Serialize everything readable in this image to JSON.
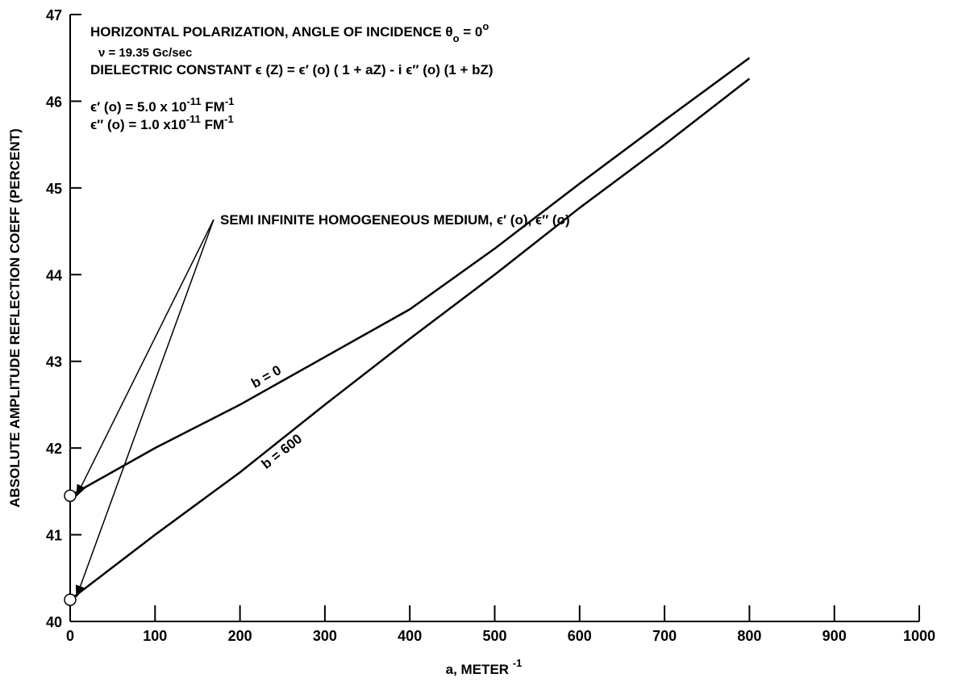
{
  "chart_data": {
    "type": "line",
    "xlabel": [
      "a, METER ",
      "-1"
    ],
    "ylabel": "ABSOLUTE AMPLITUDE REFLECTION COEFF  (PERCENT)",
    "annotations": [
      [
        "HORIZONTAL POLARIZATION, ANGLE OF INCIDENCE  θ",
        "o",
        " = 0",
        "o"
      ],
      [
        "ν = 19.35 Gc/sec"
      ],
      [
        "DIELECTRIC CONSTANT  ϵ (Z) = ϵ′ (o)  ( 1 + aZ) - i ϵ″ (o) (1 + bZ)"
      ],
      [
        "ϵ′ (o) = 5.0 x 10",
        "-11",
        "  FM",
        "-1"
      ],
      [
        "ϵ″ (o) = 1.0 x10",
        "-11",
        " FM",
        "-1"
      ],
      [
        "SEMI INFINITE HOMOGENEOUS MEDIUM, ϵ′ (o),  ϵ″ (o)"
      ]
    ],
    "x": [
      0,
      100,
      200,
      300,
      400,
      500,
      600,
      700,
      800
    ],
    "series": [
      {
        "name": "b = 0",
        "color": "#000000",
        "values": [
          41.45,
          42.0,
          42.5,
          43.05,
          43.6,
          44.3,
          45.05,
          45.78,
          46.5
        ]
      },
      {
        "name": "b = 600",
        "color": "#000000",
        "values": [
          40.25,
          41.0,
          41.72,
          42.5,
          43.26,
          44.0,
          44.77,
          45.5,
          46.26
        ]
      }
    ],
    "xlim": [
      0,
      1000
    ],
    "xticks": [
      0,
      100,
      200,
      300,
      400,
      500,
      600,
      700,
      800,
      900,
      1000
    ],
    "ylim": [
      40,
      47
    ],
    "yticks": [
      40,
      41,
      42,
      43,
      44,
      45,
      46,
      47
    ],
    "grid": false
  }
}
